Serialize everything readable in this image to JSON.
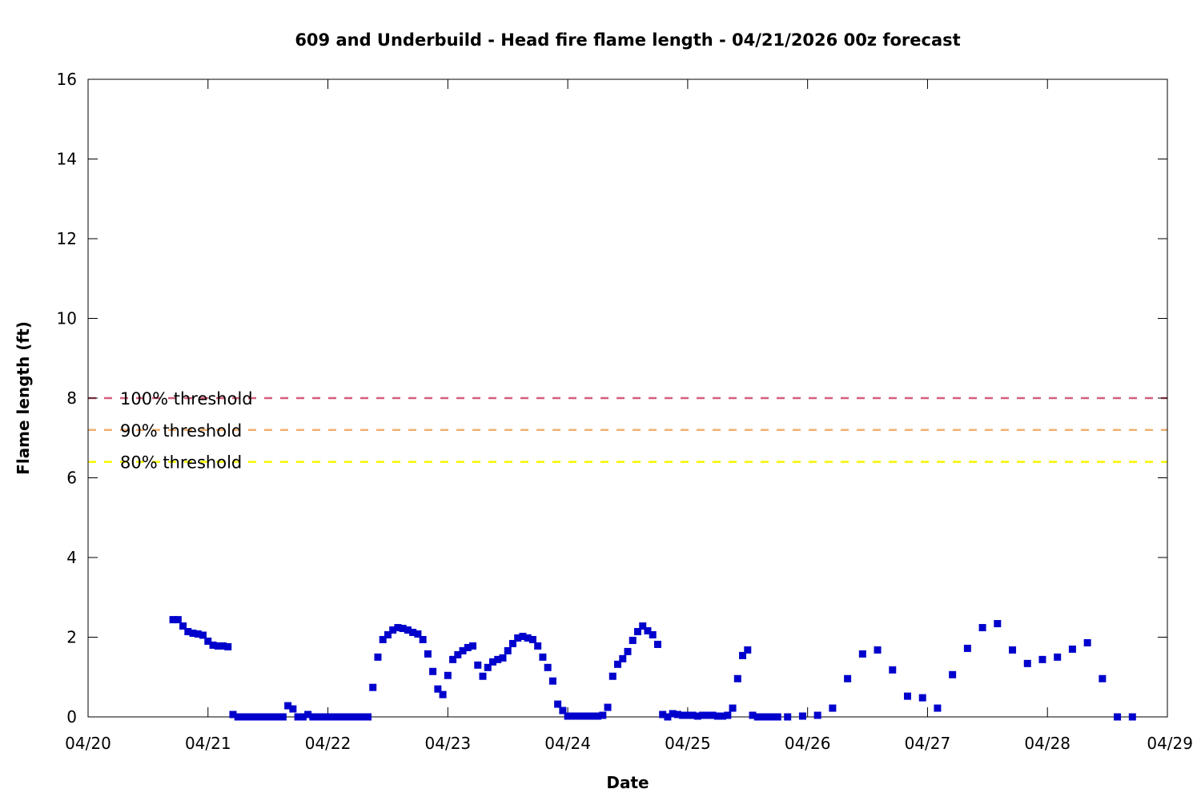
{
  "chart_data": {
    "type": "scatter",
    "title": "609 and Underbuild - Head fire flame length - 04/21/2026 00z forecast",
    "xlabel": "Date",
    "ylabel": "Flame length (ft)",
    "x_ticks": [
      "04/20",
      "04/21",
      "04/22",
      "04/23",
      "04/24",
      "04/25",
      "04/26",
      "04/27",
      "04/28",
      "04/29"
    ],
    "y_ticks": [
      "0",
      "2",
      "4",
      "6",
      "8",
      "10",
      "12",
      "14",
      "16"
    ],
    "xlim": [
      "04/20 00:00",
      "04/29 00:00"
    ],
    "ylim": [
      0,
      16
    ],
    "grid": false,
    "thresholds": [
      {
        "label": "100% threshold",
        "value": 8.0,
        "color": "#d45f7a"
      },
      {
        "label": "90% threshold",
        "value": 7.2,
        "color": "#f0b070"
      },
      {
        "label": "80% threshold",
        "value": 6.4,
        "color": "#f5f500"
      }
    ],
    "series": [
      {
        "color": "#0000cc",
        "points": [
          [
            "04/20 17:00",
            2.44
          ],
          [
            "04/20 18:00",
            2.44
          ],
          [
            "04/20 19:00",
            2.28
          ],
          [
            "04/20 20:00",
            2.14
          ],
          [
            "04/20 21:00",
            2.1
          ],
          [
            "04/20 22:00",
            2.08
          ],
          [
            "04/20 23:00",
            2.05
          ],
          [
            "04/21 00:00",
            1.9
          ],
          [
            "04/21 01:00",
            1.8
          ],
          [
            "04/21 02:00",
            1.78
          ],
          [
            "04/21 03:00",
            1.78
          ],
          [
            "04/21 04:00",
            1.76
          ],
          [
            "04/21 05:00",
            0.06
          ],
          [
            "04/21 06:00",
            0.0
          ],
          [
            "04/21 07:00",
            0.0
          ],
          [
            "04/21 08:00",
            0.0
          ],
          [
            "04/21 09:00",
            0.0
          ],
          [
            "04/21 10:00",
            0.0
          ],
          [
            "04/21 11:00",
            0.0
          ],
          [
            "04/21 12:00",
            0.0
          ],
          [
            "04/21 13:00",
            0.0
          ],
          [
            "04/21 14:00",
            0.0
          ],
          [
            "04/21 15:00",
            0.0
          ],
          [
            "04/21 16:00",
            0.28
          ],
          [
            "04/21 17:00",
            0.2
          ],
          [
            "04/21 18:00",
            0.0
          ],
          [
            "04/21 19:00",
            0.0
          ],
          [
            "04/21 20:00",
            0.06
          ],
          [
            "04/21 21:00",
            0.0
          ],
          [
            "04/21 22:00",
            0.0
          ],
          [
            "04/21 23:00",
            0.0
          ],
          [
            "04/22 00:00",
            0.0
          ],
          [
            "04/22 01:00",
            0.0
          ],
          [
            "04/22 02:00",
            0.0
          ],
          [
            "04/22 03:00",
            0.0
          ],
          [
            "04/22 04:00",
            0.0
          ],
          [
            "04/22 05:00",
            0.0
          ],
          [
            "04/22 06:00",
            0.0
          ],
          [
            "04/22 07:00",
            0.0
          ],
          [
            "04/22 08:00",
            0.0
          ],
          [
            "04/22 09:00",
            0.74
          ],
          [
            "04/22 10:00",
            1.5
          ],
          [
            "04/22 11:00",
            1.94
          ],
          [
            "04/22 12:00",
            2.06
          ],
          [
            "04/22 13:00",
            2.18
          ],
          [
            "04/22 14:00",
            2.24
          ],
          [
            "04/22 15:00",
            2.22
          ],
          [
            "04/22 16:00",
            2.18
          ],
          [
            "04/22 17:00",
            2.12
          ],
          [
            "04/22 18:00",
            2.08
          ],
          [
            "04/22 19:00",
            1.94
          ],
          [
            "04/22 20:00",
            1.58
          ],
          [
            "04/22 21:00",
            1.14
          ],
          [
            "04/22 22:00",
            0.7
          ],
          [
            "04/22 23:00",
            0.56
          ],
          [
            "04/23 00:00",
            1.04
          ],
          [
            "04/23 01:00",
            1.44
          ],
          [
            "04/23 02:00",
            1.56
          ],
          [
            "04/23 03:00",
            1.66
          ],
          [
            "04/23 04:00",
            1.74
          ],
          [
            "04/23 05:00",
            1.78
          ],
          [
            "04/23 06:00",
            1.3
          ],
          [
            "04/23 07:00",
            1.02
          ],
          [
            "04/23 08:00",
            1.24
          ],
          [
            "04/23 09:00",
            1.38
          ],
          [
            "04/23 10:00",
            1.44
          ],
          [
            "04/23 11:00",
            1.48
          ],
          [
            "04/23 12:00",
            1.66
          ],
          [
            "04/23 13:00",
            1.84
          ],
          [
            "04/23 14:00",
            1.98
          ],
          [
            "04/23 15:00",
            2.02
          ],
          [
            "04/23 16:00",
            1.98
          ],
          [
            "04/23 17:00",
            1.94
          ],
          [
            "04/23 18:00",
            1.78
          ],
          [
            "04/23 19:00",
            1.5
          ],
          [
            "04/23 20:00",
            1.24
          ],
          [
            "04/23 21:00",
            0.9
          ],
          [
            "04/23 22:00",
            0.32
          ],
          [
            "04/23 23:00",
            0.16
          ],
          [
            "04/24 00:00",
            0.02
          ],
          [
            "04/24 01:00",
            0.02
          ],
          [
            "04/24 02:00",
            0.02
          ],
          [
            "04/24 03:00",
            0.02
          ],
          [
            "04/24 04:00",
            0.02
          ],
          [
            "04/24 05:00",
            0.02
          ],
          [
            "04/24 06:00",
            0.02
          ],
          [
            "04/24 07:00",
            0.04
          ],
          [
            "04/24 08:00",
            0.24
          ],
          [
            "04/24 09:00",
            1.02
          ],
          [
            "04/24 10:00",
            1.32
          ],
          [
            "04/24 11:00",
            1.46
          ],
          [
            "04/24 12:00",
            1.64
          ],
          [
            "04/24 13:00",
            1.92
          ],
          [
            "04/24 14:00",
            2.14
          ],
          [
            "04/24 15:00",
            2.28
          ],
          [
            "04/24 16:00",
            2.16
          ],
          [
            "04/24 17:00",
            2.06
          ],
          [
            "04/24 18:00",
            1.82
          ],
          [
            "04/24 19:00",
            0.06
          ],
          [
            "04/24 20:00",
            0.0
          ],
          [
            "04/24 21:00",
            0.08
          ],
          [
            "04/24 22:00",
            0.06
          ],
          [
            "04/24 23:00",
            0.04
          ],
          [
            "04/25 00:00",
            0.04
          ],
          [
            "04/25 01:00",
            0.04
          ],
          [
            "04/25 02:00",
            0.02
          ],
          [
            "04/25 03:00",
            0.04
          ],
          [
            "04/25 04:00",
            0.04
          ],
          [
            "04/25 05:00",
            0.04
          ],
          [
            "04/25 06:00",
            0.02
          ],
          [
            "04/25 07:00",
            0.02
          ],
          [
            "04/25 08:00",
            0.04
          ],
          [
            "04/25 09:00",
            0.22
          ],
          [
            "04/25 10:00",
            0.96
          ],
          [
            "04/25 11:00",
            1.54
          ],
          [
            "04/25 12:00",
            1.68
          ],
          [
            "04/25 13:00",
            0.04
          ],
          [
            "04/25 14:00",
            0.0
          ],
          [
            "04/25 15:00",
            0.0
          ],
          [
            "04/25 16:00",
            0.0
          ],
          [
            "04/25 17:00",
            0.0
          ],
          [
            "04/25 18:00",
            0.0
          ],
          [
            "04/25 20:00",
            0.0
          ],
          [
            "04/25 23:00",
            0.02
          ],
          [
            "04/26 02:00",
            0.04
          ],
          [
            "04/26 05:00",
            0.22
          ],
          [
            "04/26 08:00",
            0.96
          ],
          [
            "04/26 11:00",
            1.58
          ],
          [
            "04/26 14:00",
            1.68
          ],
          [
            "04/26 17:00",
            1.18
          ],
          [
            "04/26 20:00",
            0.52
          ],
          [
            "04/26 23:00",
            0.48
          ],
          [
            "04/27 02:00",
            0.22
          ],
          [
            "04/27 05:00",
            1.06
          ],
          [
            "04/27 08:00",
            1.72
          ],
          [
            "04/27 11:00",
            2.24
          ],
          [
            "04/27 14:00",
            2.34
          ],
          [
            "04/27 17:00",
            1.68
          ],
          [
            "04/27 20:00",
            1.34
          ],
          [
            "04/27 23:00",
            1.44
          ],
          [
            "04/28 02:00",
            1.5
          ],
          [
            "04/28 05:00",
            1.7
          ],
          [
            "04/28 08:00",
            1.86
          ],
          [
            "04/28 11:00",
            0.96
          ],
          [
            "04/28 14:00",
            0.0
          ],
          [
            "04/28 17:00",
            0.0
          ]
        ]
      }
    ]
  }
}
